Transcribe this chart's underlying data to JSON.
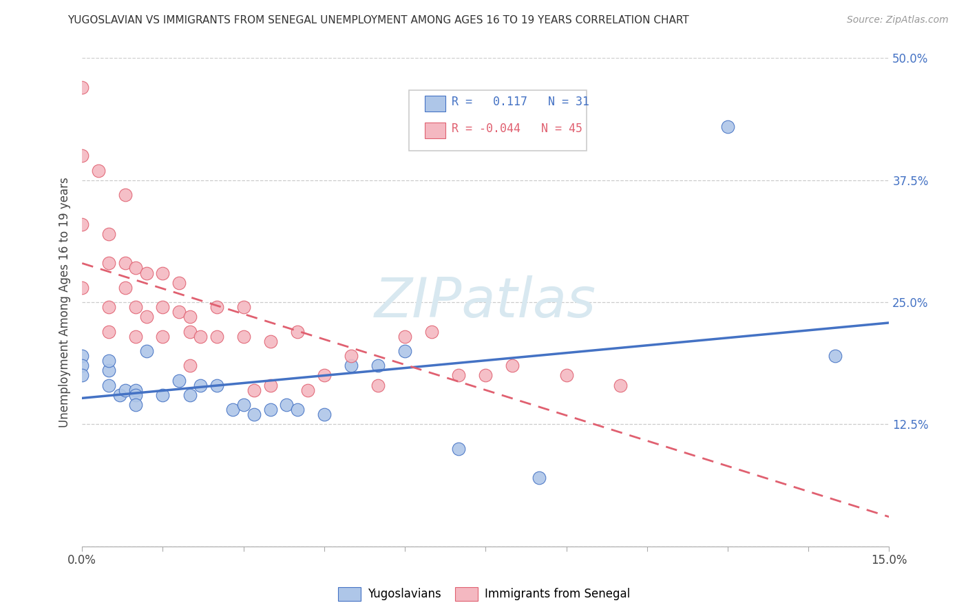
{
  "title": "YUGOSLAVIAN VS IMMIGRANTS FROM SENEGAL UNEMPLOYMENT AMONG AGES 16 TO 19 YEARS CORRELATION CHART",
  "source": "Source: ZipAtlas.com",
  "ylabel": "Unemployment Among Ages 16 to 19 years",
  "xlim": [
    0.0,
    0.15
  ],
  "ylim": [
    0.0,
    0.5
  ],
  "xticks": [
    0.0,
    0.015,
    0.03,
    0.045,
    0.06,
    0.075,
    0.09,
    0.105,
    0.12,
    0.135,
    0.15
  ],
  "xtick_labels_show": [
    "0.0%",
    "",
    "",
    "",
    "",
    "",
    "",
    "",
    "",
    "",
    "15.0%"
  ],
  "yticks": [
    0.0,
    0.125,
    0.25,
    0.375,
    0.5
  ],
  "ytick_labels_right": [
    "",
    "12.5%",
    "25.0%",
    "37.5%",
    "50.0%"
  ],
  "series1_color": "#aec6e8",
  "series2_color": "#f4b8c1",
  "line1_color": "#4472c4",
  "line2_color": "#e06070",
  "yugoslavians_x": [
    0.0,
    0.0,
    0.0,
    0.005,
    0.005,
    0.005,
    0.007,
    0.008,
    0.01,
    0.01,
    0.01,
    0.012,
    0.015,
    0.018,
    0.02,
    0.022,
    0.025,
    0.028,
    0.03,
    0.032,
    0.035,
    0.038,
    0.04,
    0.045,
    0.05,
    0.055,
    0.06,
    0.07,
    0.085,
    0.12,
    0.14
  ],
  "yugoslavians_y": [
    0.195,
    0.185,
    0.175,
    0.18,
    0.19,
    0.165,
    0.155,
    0.16,
    0.16,
    0.155,
    0.145,
    0.2,
    0.155,
    0.17,
    0.155,
    0.165,
    0.165,
    0.14,
    0.145,
    0.135,
    0.14,
    0.145,
    0.14,
    0.135,
    0.185,
    0.185,
    0.2,
    0.1,
    0.07,
    0.43,
    0.195
  ],
  "senegal_x": [
    0.0,
    0.0,
    0.0,
    0.0,
    0.003,
    0.005,
    0.005,
    0.005,
    0.005,
    0.008,
    0.008,
    0.008,
    0.01,
    0.01,
    0.01,
    0.012,
    0.012,
    0.015,
    0.015,
    0.015,
    0.018,
    0.018,
    0.02,
    0.02,
    0.02,
    0.022,
    0.025,
    0.025,
    0.03,
    0.03,
    0.032,
    0.035,
    0.035,
    0.04,
    0.042,
    0.045,
    0.05,
    0.055,
    0.06,
    0.065,
    0.07,
    0.075,
    0.08,
    0.09,
    0.1
  ],
  "senegal_y": [
    0.47,
    0.4,
    0.33,
    0.265,
    0.385,
    0.32,
    0.29,
    0.245,
    0.22,
    0.36,
    0.29,
    0.265,
    0.285,
    0.245,
    0.215,
    0.28,
    0.235,
    0.28,
    0.245,
    0.215,
    0.27,
    0.24,
    0.235,
    0.22,
    0.185,
    0.215,
    0.245,
    0.215,
    0.245,
    0.215,
    0.16,
    0.21,
    0.165,
    0.22,
    0.16,
    0.175,
    0.195,
    0.165,
    0.215,
    0.22,
    0.175,
    0.175,
    0.185,
    0.175,
    0.165
  ]
}
